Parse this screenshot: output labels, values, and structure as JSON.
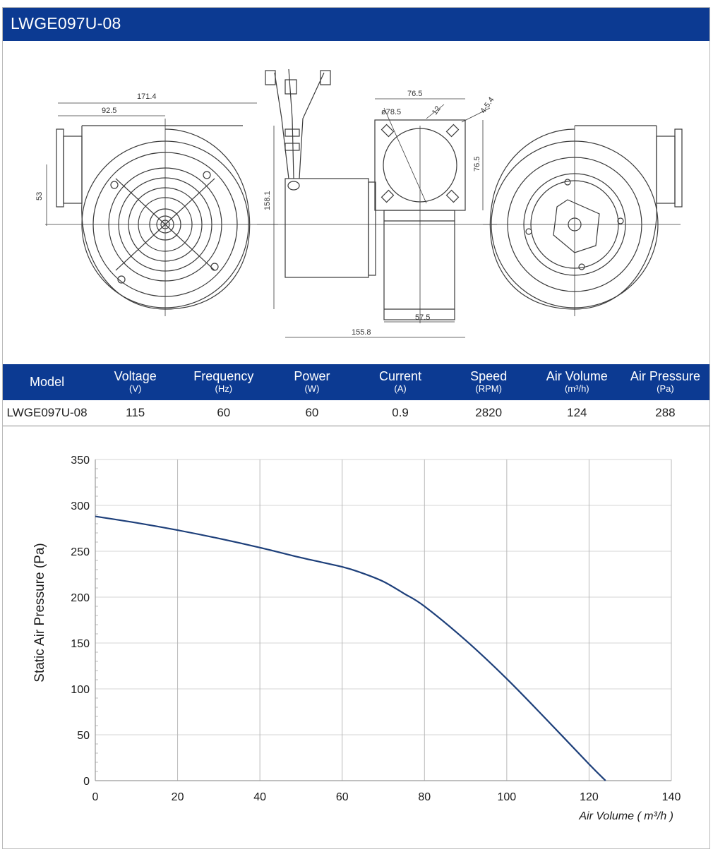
{
  "header": {
    "title": "LWGE097U-08"
  },
  "drawing": {
    "dimensions": [
      "171.4",
      "92.5",
      "53",
      "158.1",
      "76.5",
      "ø78.5",
      "12",
      "4-5.4",
      "76.5",
      "57.5",
      "155.8"
    ]
  },
  "spec_table": {
    "columns": [
      {
        "label": "Model",
        "unit": ""
      },
      {
        "label": "Voltage",
        "unit": "(V)"
      },
      {
        "label": "Frequency",
        "unit": "(Hz)"
      },
      {
        "label": "Power",
        "unit": "(W)"
      },
      {
        "label": "Current",
        "unit": "(A)"
      },
      {
        "label": "Speed",
        "unit": "(RPM)"
      },
      {
        "label": "Air Volume",
        "unit": "(m³/h)"
      },
      {
        "label": "Air Pressure",
        "unit": "(Pa)"
      }
    ],
    "row": [
      "LWGE097U-08",
      "115",
      "60",
      "60",
      "0.9",
      "2820",
      "124",
      "288"
    ]
  },
  "colors": {
    "brand": "#0c3a92",
    "curve": "#1d3f7a",
    "grid": "#cfcfcf"
  },
  "chart_data": {
    "type": "line",
    "xlabel": "Air Volume ( m³/h )",
    "ylabel": "Static Air Pressure  (Pa)",
    "xlim": [
      0,
      140
    ],
    "ylim": [
      0,
      350
    ],
    "xticks": [
      "0",
      "20",
      "40",
      "60",
      "80",
      "100",
      "120",
      "140"
    ],
    "yticks": [
      "0",
      "50",
      "100",
      "150",
      "200",
      "250",
      "300",
      "350"
    ],
    "grid": true,
    "series": [
      {
        "x": [
          0,
          10,
          20,
          30,
          40,
          50,
          60,
          65,
          70,
          75,
          80,
          90,
          100,
          110,
          120,
          124
        ],
        "y": [
          288,
          281,
          273,
          264,
          254,
          243,
          233,
          226,
          217,
          204,
          190,
          153,
          111,
          65,
          18,
          0
        ]
      }
    ]
  }
}
